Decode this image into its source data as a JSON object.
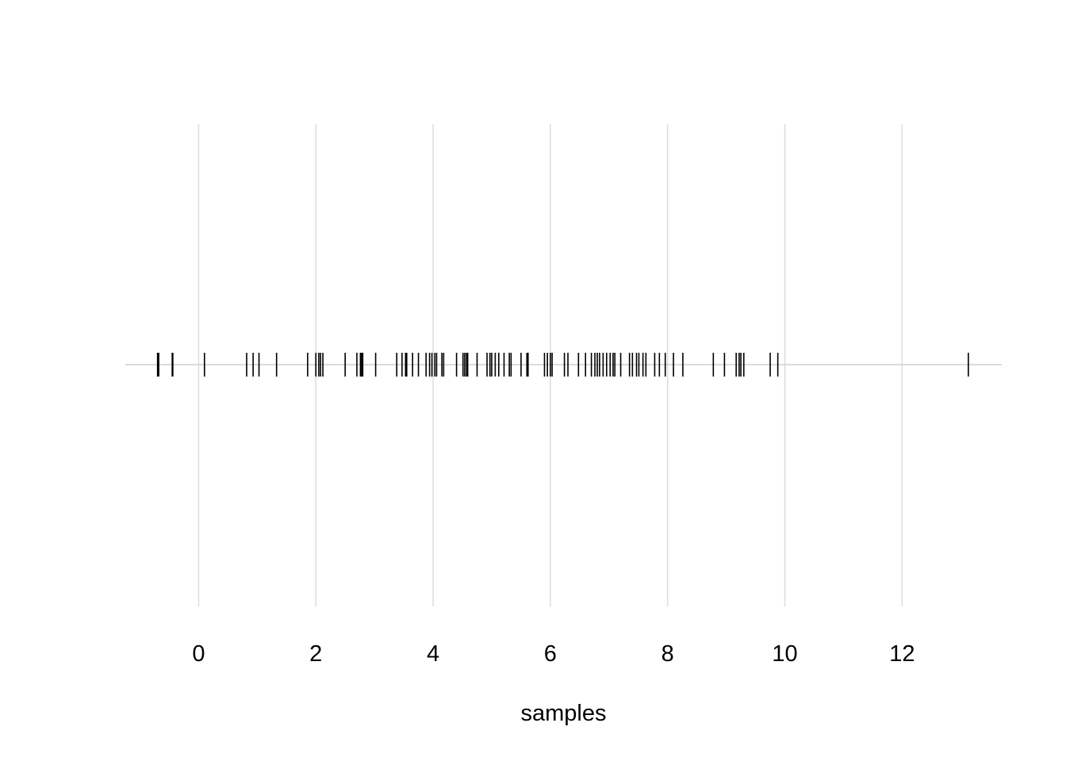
{
  "chart_data": {
    "type": "rug",
    "title": "",
    "xlabel": "samples",
    "ylabel": "",
    "xlim": [
      -1.25,
      13.7
    ],
    "x_ticks": [
      0,
      2,
      4,
      6,
      8,
      10,
      12
    ],
    "x_tick_labels": [
      "0",
      "2",
      "4",
      "6",
      "8",
      "10",
      "12"
    ],
    "grid": "vertical major gridlines",
    "legend": "none",
    "colors": {
      "marks": "#000000",
      "grid": "#dedede",
      "baseline": "#cfcfcf",
      "background": "#ffffff"
    },
    "values": [
      -0.7,
      -0.68,
      -0.45,
      -0.44,
      0.1,
      0.82,
      0.93,
      1.03,
      1.33,
      1.86,
      2.0,
      2.05,
      2.08,
      2.12,
      2.5,
      2.7,
      2.76,
      2.78,
      2.8,
      3.02,
      3.38,
      3.47,
      3.53,
      3.55,
      3.65,
      3.75,
      3.88,
      3.94,
      3.98,
      4.03,
      4.06,
      4.15,
      4.18,
      4.4,
      4.51,
      4.54,
      4.57,
      4.59,
      4.75,
      4.92,
      4.97,
      5.0,
      5.06,
      5.12,
      5.21,
      5.3,
      5.33,
      5.5,
      5.6,
      5.62,
      5.9,
      5.95,
      6.0,
      6.03,
      6.24,
      6.3,
      6.48,
      6.6,
      6.7,
      6.76,
      6.8,
      6.84,
      6.9,
      6.96,
      7.02,
      7.07,
      7.1,
      7.2,
      7.35,
      7.4,
      7.47,
      7.51,
      7.58,
      7.63,
      7.78,
      7.86,
      7.96,
      8.1,
      8.26,
      8.78,
      8.97,
      9.17,
      9.22,
      9.25,
      9.3,
      9.75,
      9.88,
      13.13
    ]
  }
}
